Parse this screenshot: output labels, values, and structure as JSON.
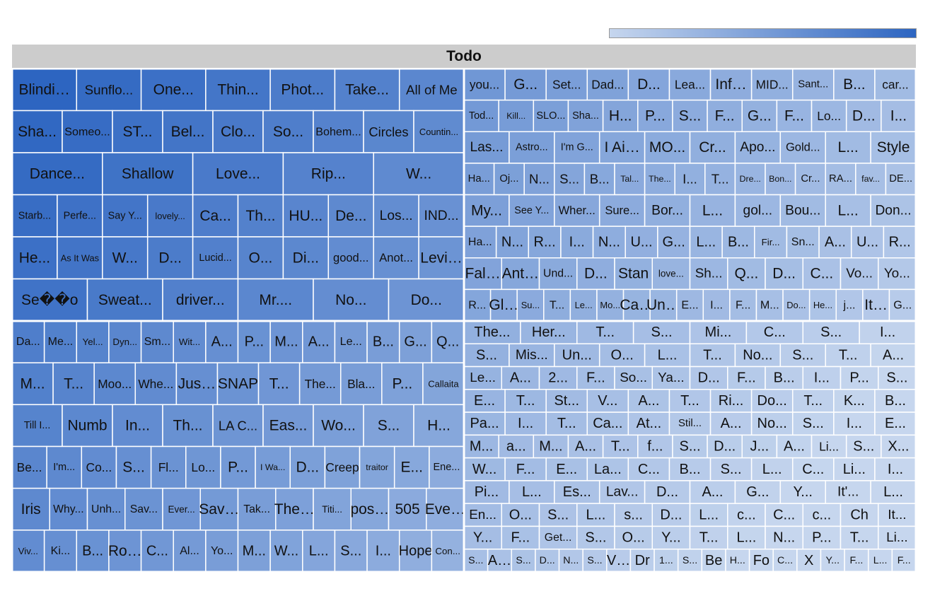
{
  "colors": {
    "root_bg": "#cccccc",
    "cell_border": "#ffffff",
    "scale_low": "#c6d6ee",
    "scale_high": "#2d65c1"
  },
  "chart_data": {
    "type": "treemap",
    "root_label": "Todo",
    "legend": "color-scale bar top-right",
    "groups": [
      {
        "w": [
          3,
          2,
          2,
          2
        ],
        "rows": [
          [
            "Blinding Lights",
            "Sunflo...",
            "One...",
            "Thin...",
            "Phot...",
            "Take...",
            "All of Me"
          ],
          [
            "Sha...",
            "Someo...",
            "ST...",
            "Bel...",
            "Clo...",
            "So...",
            "Bohem...",
            "Circles",
            "Countin..."
          ],
          [
            "Dance...",
            "Shallow",
            "Love...",
            "Rip...",
            "W..."
          ],
          [
            "Starb...",
            "Perfe...",
            "Say Y...",
            "lovely...",
            "Ca...",
            "Th...",
            "HU...",
            "De...",
            "Los...",
            "IND..."
          ],
          [
            "He...",
            "As It Was",
            "W...",
            "D...",
            "Lucid...",
            "O...",
            "Di...",
            "good...",
            "Anot...",
            "Levitati..."
          ],
          [
            "Se��o",
            "Sweat...",
            "driver...",
            "Mr....",
            "No...",
            "Do..."
          ]
        ]
      },
      {
        "w": [
          2,
          2,
          2
        ],
        "rows": [
          [
            "Da...",
            "Me...",
            "Yel...",
            "Dyn...",
            "Sm...",
            "Wit...",
            "A...",
            "P...",
            "M...",
            "A...",
            "Le...",
            "B...",
            "G...",
            "Q..."
          ],
          [
            "M...",
            "T...",
            "Moo...",
            "Whe...",
            "Just Th...",
            "SNAP",
            "T...",
            "The...",
            "Bla...",
            "P...",
            "Callaita"
          ],
          [
            "Till I...",
            "Numb",
            "In...",
            "Th...",
            "LA C...",
            "Eas...",
            "Wo...",
            "S...",
            "H..."
          ],
          [
            "Be...",
            "I'm...",
            "Co...",
            "S...",
            "Fl...",
            "Lo...",
            "P...",
            "I Wa...",
            "D...",
            "Creep",
            "traitor",
            "E...",
            "Ene..."
          ],
          [
            "Iris",
            "Why...",
            "Unh...",
            "Sav...",
            "Ever...",
            "Save Y...",
            "Tak...",
            "The N...",
            "Titi...",
            "positi...",
            "505",
            "Everyb..."
          ],
          [
            "Viv...",
            "Ki...",
            "B...",
            "Roll...",
            "C...",
            "Al...",
            "Yo...",
            "M...",
            "W...",
            "L...",
            "S...",
            "I...",
            "Hope",
            "Con..."
          ]
        ]
      },
      {
        "w": [
          2,
          3,
          2
        ],
        "rows": [
          [
            "you...",
            "G...",
            "Set...",
            "Dad...",
            "D...",
            "Lea...",
            "Infini...",
            "MID...",
            "Sant...",
            "B...",
            "car..."
          ],
          [
            "Tod...",
            "Kill...",
            "SLO...",
            "Sha...",
            "H...",
            "P...",
            "S...",
            "F...",
            "G...",
            "F...",
            "Lo...",
            "D...",
            "I..."
          ],
          [
            "Las...",
            "Astro...",
            "I'm G...",
            "I Ain't...",
            "MO...",
            "Cr...",
            "Apo...",
            "Gold...",
            "L...",
            "Style"
          ],
          [
            "Ha...",
            "Oj...",
            "N...",
            "S...",
            "B...",
            "Tal...",
            "The...",
            "I...",
            "T...",
            "Dre...",
            "Bon...",
            "Cr...",
            "RA...",
            "fav...",
            "DE..."
          ],
          [
            "My...",
            "See Y...",
            "Wher...",
            "Sure...",
            "Bor...",
            "L...",
            "gol...",
            "Bou...",
            "L...",
            "Don..."
          ],
          [
            "Ha...",
            "N...",
            "R...",
            "I...",
            "N...",
            "U...",
            "G...",
            "L...",
            "B...",
            "Fir...",
            "Sn...",
            "A...",
            "U...",
            "R..."
          ],
          [
            "Falli...",
            "Anti-H...",
            "Und...",
            "D...",
            "Stan",
            "love...",
            "Sh...",
            "Q...",
            "D...",
            "C...",
            "Vo...",
            "Yo..."
          ],
          [
            "R...",
            "Gli...",
            "Su...",
            "T...",
            "Le...",
            "Mo...",
            "Cal...",
            "Until...",
            "E...",
            "I...",
            "F...",
            "M...",
            "Do...",
            "He...",
            "j...",
            "It'...",
            "G..."
          ]
        ]
      },
      {
        "w": [
          2,
          2,
          2
        ],
        "rows": [
          [
            "The...",
            "Her...",
            "T...",
            "S...",
            "Mi...",
            "C...",
            "S...",
            "I..."
          ],
          [
            "S...",
            "Mis...",
            "Un...",
            "O...",
            "L...",
            "T...",
            "No...",
            "S...",
            "T...",
            "A..."
          ],
          [
            "Le...",
            "A...",
            "2...",
            "F...",
            "So...",
            "Ya...",
            "D...",
            "F...",
            "B...",
            "I...",
            "P...",
            "S..."
          ],
          [
            "E...",
            "T...",
            "St...",
            "V...",
            "A...",
            "T...",
            "Ri...",
            "Do...",
            "T...",
            "K...",
            "B..."
          ],
          [
            "Pa...",
            "I...",
            "T...",
            "Ca...",
            "At...",
            "Stil...",
            "A...",
            "No...",
            "S...",
            "I...",
            "E..."
          ],
          [
            "M...",
            "a...",
            "M...",
            "A...",
            "T...",
            "f...",
            "S...",
            "D...",
            "J...",
            "A...",
            "Li...",
            "S...",
            "X..."
          ],
          [
            "W...",
            "F...",
            "E...",
            "La...",
            "C...",
            "B...",
            "S...",
            "L...",
            "C...",
            "Li...",
            "I..."
          ],
          [
            "Pi...",
            "L...",
            "Es...",
            "Lav...",
            "D...",
            "A...",
            "G...",
            "Y...",
            "It'...",
            "L..."
          ],
          [
            "En...",
            "O...",
            "S...",
            "L...",
            "s...",
            "D...",
            "L...",
            "c...",
            "C...",
            "c...",
            "Ch",
            "It..."
          ],
          [
            "Y...",
            "F...",
            "Get...",
            "S...",
            "O...",
            "Y...",
            "T...",
            "L...",
            "N...",
            "P...",
            "T...",
            "Li..."
          ],
          [
            "S...",
            "Ai...",
            "S...",
            "D...",
            "N...",
            "S...",
            "Ve...",
            "Dr",
            "1...",
            "S...",
            "Be",
            "H...",
            "Fo",
            "C...",
            "X",
            "Y...",
            "F...",
            "L...",
            "F..."
          ]
        ]
      }
    ]
  }
}
